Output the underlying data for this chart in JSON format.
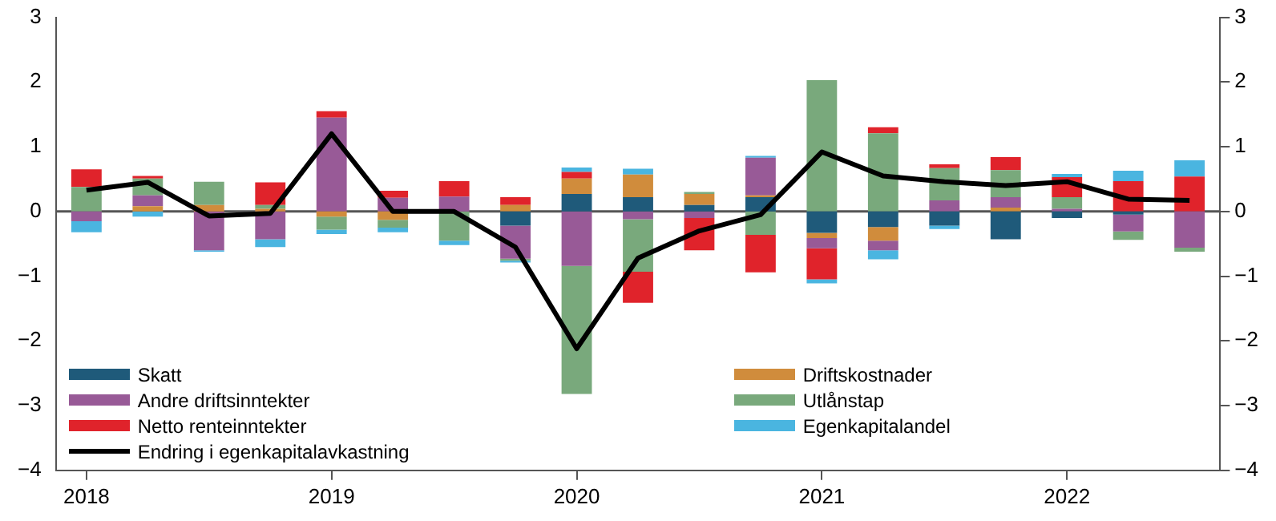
{
  "chart_data": {
    "type": "bar",
    "stacked": true,
    "categories": [
      "2018",
      null,
      null,
      null,
      "2019",
      null,
      null,
      null,
      "2020",
      null,
      null,
      null,
      "2021",
      null,
      null,
      null,
      "2022",
      null,
      null
    ],
    "series": [
      {
        "name": "Skatt",
        "color": "#1f5a7a",
        "values": [
          null,
          0,
          null,
          null,
          0,
          null,
          0,
          -0.22,
          0.27,
          0.22,
          0.1,
          0.22,
          -0.33,
          -0.24,
          -0.22,
          -0.43,
          -0.1,
          -0.05,
          0
        ]
      },
      {
        "name": "Driftskostnader",
        "color": "#d08c3c",
        "values": [
          0,
          0.08,
          0.1,
          0.04,
          -0.08,
          -0.13,
          0,
          0.1,
          0.24,
          0.35,
          0.17,
          0.03,
          -0.08,
          -0.21,
          0,
          0.06,
          0,
          0,
          0
        ]
      },
      {
        "name": "Andre driftsinntekter",
        "color": "#985a97",
        "values": [
          -0.15,
          0.17,
          -0.6,
          -0.43,
          1.45,
          0.21,
          0.23,
          -0.51,
          -0.84,
          -0.12,
          -0.1,
          0.58,
          -0.16,
          -0.15,
          0.17,
          0.16,
          0.04,
          -0.26,
          -0.56
        ]
      },
      {
        "name": "Utlånstap",
        "color": "#79a97c",
        "values": [
          0.38,
          0.26,
          0.36,
          0.06,
          -0.2,
          -0.12,
          -0.45,
          -0.03,
          -1.98,
          -0.81,
          0.03,
          -0.36,
          2.03,
          1.21,
          0.5,
          0.42,
          0.18,
          -0.13,
          -0.06
        ]
      },
      {
        "name": "Netto renteinntekter",
        "color": "#e0232b",
        "values": [
          0.27,
          0.04,
          0,
          0.35,
          0.1,
          0.11,
          0.24,
          0.12,
          0.1,
          -0.48,
          -0.5,
          -0.58,
          -0.48,
          0.09,
          0.06,
          0.2,
          0.31,
          0.47,
          0.54
        ]
      },
      {
        "name": "Egenkapitalandel",
        "color": "#4ab5e0",
        "values": [
          -0.17,
          -0.08,
          -0.02,
          -0.12,
          -0.07,
          -0.07,
          -0.07,
          -0.03,
          0.07,
          0.09,
          0,
          0.03,
          -0.06,
          -0.14,
          -0.05,
          0,
          0.05,
          0.16,
          0.25
        ]
      },
      {
        "name": "Endring i egenkapitalavkastning",
        "type": "line",
        "color": "#000000",
        "values": [
          0.33,
          0.45,
          -0.07,
          -0.03,
          1.2,
          0,
          0,
          -0.55,
          -2.12,
          -0.72,
          -0.3,
          -0.05,
          0.92,
          0.55,
          0.46,
          0.4,
          0.46,
          0.19,
          0.17
        ]
      }
    ],
    "ylim": [
      -4,
      3
    ],
    "yticks": [
      -4,
      -3,
      -2,
      -1,
      0,
      1,
      2,
      3
    ],
    "y2lim": [
      -4,
      3
    ],
    "y2ticks": [
      -4,
      -3,
      -2,
      -1,
      0,
      1,
      2,
      3
    ],
    "ref_lines": [
      {
        "axis": "y",
        "value": 0,
        "color": "#555555"
      }
    ],
    "legend": "bottom",
    "grid": false
  }
}
